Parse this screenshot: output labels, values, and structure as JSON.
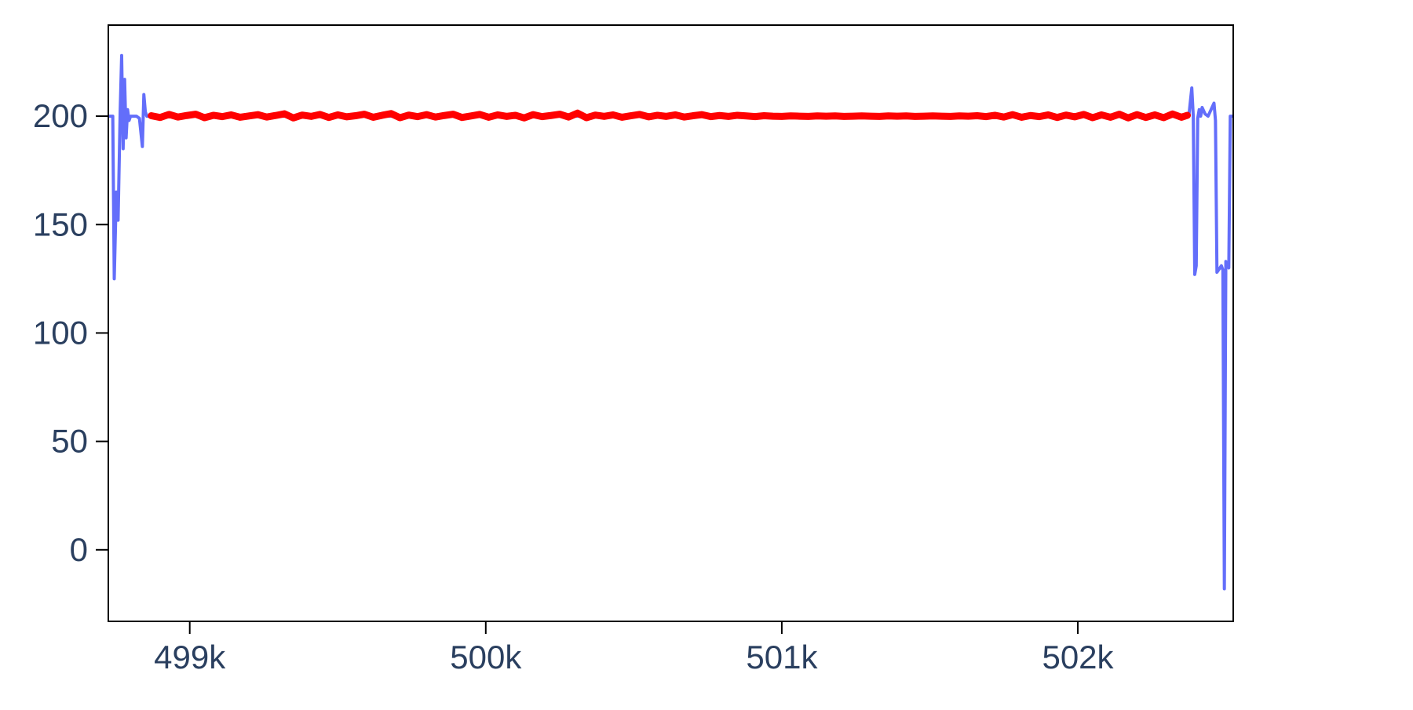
{
  "chart_data": {
    "type": "line",
    "title": "",
    "xlabel": "",
    "ylabel": "",
    "xlim": [
      498725,
      502525
    ],
    "ylim": [
      -33,
      242
    ],
    "x_ticks": [
      {
        "value": 499000,
        "label": "499k"
      },
      {
        "value": 500000,
        "label": "500k"
      },
      {
        "value": 501000,
        "label": "501k"
      },
      {
        "value": 502000,
        "label": "502k"
      }
    ],
    "y_ticks": [
      {
        "value": 0,
        "label": "0"
      },
      {
        "value": 50,
        "label": "50"
      },
      {
        "value": 100,
        "label": "100"
      },
      {
        "value": 150,
        "label": "150"
      },
      {
        "value": 200,
        "label": "200"
      }
    ],
    "grid": false,
    "legend": "none",
    "series": [
      {
        "color": "#636efa",
        "x": [
          498730,
          498740,
          498745,
          498752,
          498758,
          498765,
          498770,
          498775,
          498780,
          498785,
          498790,
          498795,
          498800,
          498805,
          498810,
          498815,
          498820,
          498830,
          498840,
          498845,
          498850,
          498855,
          498860,
          498870,
          498880,
          498890,
          498895,
          498900,
          498905,
          498910,
          498915,
          498920,
          498930,
          498940,
          498960,
          498980,
          499000,
          499050,
          499100,
          499150,
          499200,
          499250,
          499300,
          499350,
          499400,
          499450,
          499500,
          499550,
          499600,
          499650,
          499700,
          499750,
          499800,
          499850,
          499900,
          499950,
          500000,
          500050,
          500100,
          500150,
          500200,
          500250,
          500300,
          500350,
          500400,
          500450,
          500500,
          500550,
          500600,
          500650,
          500700,
          500750,
          500800,
          500850,
          500900,
          500950,
          501000,
          501050,
          501100,
          501150,
          501200,
          501250,
          501300,
          501350,
          501400,
          501450,
          501500,
          501550,
          501600,
          501650,
          501700,
          501750,
          501800,
          501850,
          501900,
          501950,
          502000,
          502050,
          502100,
          502150,
          502200,
          502250,
          502300,
          502350,
          502375,
          502385,
          502390,
          502395,
          502400,
          502405,
          502410,
          502415,
          502420,
          502430,
          502440,
          502450,
          502460,
          502465,
          502470,
          502475,
          502480,
          502485,
          502490,
          502495,
          502500,
          502505,
          502510,
          502515,
          502520
        ],
        "y": [
          200,
          200,
          125,
          165,
          152,
          202,
          228,
          185,
          217,
          190,
          203,
          198,
          200,
          200,
          200,
          200,
          200,
          199,
          186,
          210,
          202,
          200,
          200,
          200,
          200,
          200,
          200,
          200,
          200,
          200,
          200,
          200,
          200,
          200,
          200,
          200,
          200,
          200,
          200,
          200,
          200,
          200,
          200,
          200,
          200,
          200,
          200,
          200,
          200,
          200,
          200,
          200,
          200,
          200,
          200,
          200,
          200,
          200,
          200,
          200,
          200,
          200,
          200,
          200,
          200,
          200,
          200,
          200,
          200,
          200,
          200,
          200,
          200,
          200,
          200,
          200,
          200,
          200,
          200,
          200,
          200,
          200,
          200,
          200,
          200,
          200,
          200,
          200,
          200,
          200,
          200,
          200,
          200,
          200,
          200,
          200,
          200,
          200,
          200,
          200,
          200,
          200,
          200,
          200,
          200,
          213,
          200,
          127,
          131,
          199,
          203,
          200,
          204,
          201,
          200,
          203,
          206,
          198,
          128,
          129,
          130,
          131,
          129,
          -18,
          133,
          131,
          130,
          200,
          200
        ]
      },
      {
        "color": "#ff0000",
        "x": [
          498870,
          498900,
          498930,
          498960,
          498990,
          499020,
          499050,
          499080,
          499110,
          499140,
          499170,
          499200,
          499230,
          499260,
          499290,
          499320,
          499350,
          499380,
          499410,
          499440,
          499470,
          499500,
          499530,
          499560,
          499590,
          499620,
          499650,
          499680,
          499710,
          499740,
          499770,
          499800,
          499830,
          499860,
          499890,
          499920,
          499950,
          499980,
          500010,
          500040,
          500070,
          500100,
          500130,
          500160,
          500190,
          500220,
          500250,
          500280,
          500310,
          500340,
          500370,
          500400,
          500430,
          500460,
          500490,
          500520,
          500550,
          500580,
          500610,
          500640,
          500670,
          500700,
          500730,
          500760,
          500790,
          500820,
          500850,
          500880,
          500910,
          500940,
          500970,
          501000,
          501030,
          501060,
          501090,
          501120,
          501150,
          501180,
          501210,
          501240,
          501270,
          501300,
          501330,
          501360,
          501390,
          501420,
          501450,
          501480,
          501510,
          501540,
          501570,
          501600,
          501630,
          501660,
          501690,
          501720,
          501750,
          501780,
          501810,
          501840,
          501870,
          501900,
          501930,
          501960,
          501990,
          502020,
          502050,
          502080,
          502110,
          502140,
          502170,
          502200,
          502230,
          502260,
          502290,
          502320,
          502350,
          502370
        ],
        "y": [
          200.2,
          199.4,
          200.8,
          199.6,
          200.3,
          200.9,
          199.3,
          200.4,
          199.8,
          200.6,
          199.5,
          200.1,
          200.7,
          199.6,
          200.3,
          201.1,
          199.2,
          200.5,
          199.9,
          200.8,
          199.4,
          200.6,
          199.7,
          200.2,
          200.9,
          199.5,
          200.4,
          201.2,
          199.3,
          200.5,
          199.8,
          200.7,
          199.6,
          200.3,
          200.9,
          199.4,
          200.1,
          200.8,
          199.5,
          200.6,
          199.9,
          200.4,
          199.2,
          200.7,
          199.8,
          200.3,
          200.9,
          199.6,
          201.4,
          199.3,
          200.5,
          199.9,
          200.6,
          199.5,
          200.2,
          200.8,
          199.7,
          200.4,
          199.9,
          200.6,
          199.6,
          200.2,
          200.7,
          199.8,
          200.3,
          199.9,
          200.4,
          200.1,
          199.8,
          200.2,
          200.0,
          199.9,
          200.1,
          200.0,
          199.9,
          200.1,
          200.0,
          200.1,
          199.9,
          200.0,
          200.1,
          200.0,
          199.9,
          200.1,
          200.0,
          200.1,
          199.9,
          200.0,
          200.1,
          200.0,
          199.9,
          200.1,
          200.0,
          200.2,
          199.8,
          200.4,
          199.6,
          200.7,
          199.5,
          200.3,
          199.8,
          200.6,
          199.4,
          200.5,
          199.7,
          200.8,
          199.3,
          200.6,
          199.5,
          200.9,
          199.2,
          200.7,
          199.4,
          200.6,
          199.3,
          201.0,
          199.5,
          200.4
        ]
      }
    ]
  }
}
